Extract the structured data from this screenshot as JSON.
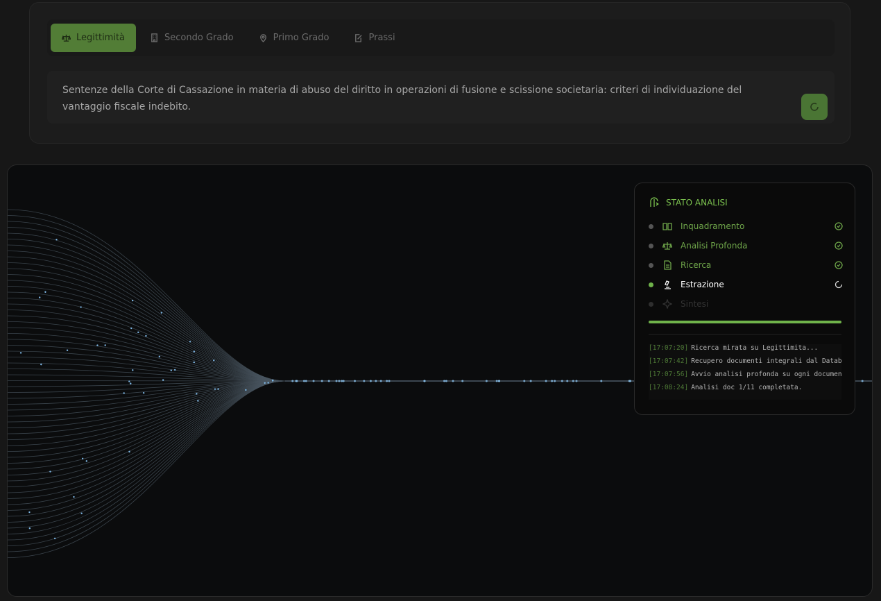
{
  "tabs": {
    "items": [
      "Legittimità",
      "Secondo Grado",
      "Primo Grado",
      "Prassi"
    ],
    "active": 0
  },
  "query": {
    "text": "Sentenze della Corte di Cassazione in materia di abuso del diritto in operazioni di fusione e scissione societaria: criteri di individuazione del vantaggio fiscale indebito."
  },
  "status_panel": {
    "title": "STATO ANALISI",
    "steps": [
      {
        "label": "Inquadramento",
        "status": "done"
      },
      {
        "label": "Analisi Profonda",
        "status": "done"
      },
      {
        "label": "Ricerca",
        "status": "done"
      },
      {
        "label": "Estrazione",
        "status": "active"
      },
      {
        "label": "Sintesi",
        "status": "pending"
      }
    ],
    "logs": [
      {
        "time": "[17:07:20]",
        "message": "Ricerca mirata su Legittimita..."
      },
      {
        "time": "[17:07:42]",
        "message": "Recupero documenti integrali dal Datab…"
      },
      {
        "time": "[17:07:56]",
        "message": "Avvio analisi profonda su ogni documen…"
      },
      {
        "time": "[17:08:24]",
        "message": "Analisi doc 1/11 completata."
      }
    ]
  }
}
